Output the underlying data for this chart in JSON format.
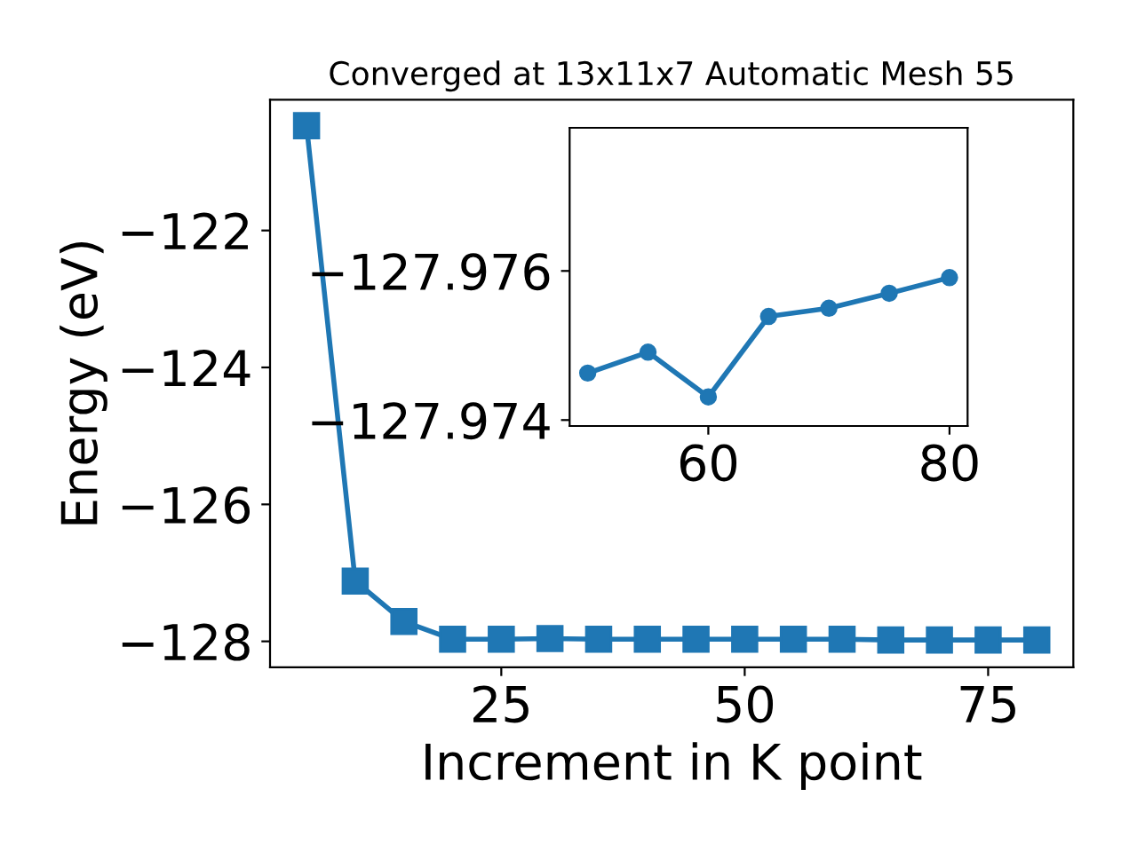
{
  "chart_data": [
    {
      "type": "line",
      "title": "Converged at 13x11x7 Automatic Mesh 55",
      "xlabel": "Increment in K point",
      "ylabel": "Energy (eV)",
      "x": [
        5,
        10,
        15,
        20,
        25,
        30,
        35,
        40,
        45,
        50,
        55,
        60,
        65,
        70,
        75,
        80
      ],
      "series": [
        {
          "color": "#1f77b4",
          "values": [
            -120.47,
            -127.12,
            -127.71,
            -127.97,
            -127.97,
            -127.96,
            -127.97,
            -127.97,
            -127.97,
            -127.97,
            -127.97,
            -127.97,
            -127.98,
            -127.98,
            -127.98,
            -127.98
          ]
        }
      ],
      "xlim": [
        1.25,
        83.75
      ],
      "xticks": [
        25,
        50,
        75
      ],
      "ylim": [
        -128.38,
        -120.09
      ],
      "yticks": [
        {
          "value": -128,
          "label": "−128"
        },
        {
          "value": -126,
          "label": "−126"
        },
        {
          "value": -124,
          "label": "−124"
        },
        {
          "value": -122,
          "label": "−122"
        }
      ],
      "marker": "square",
      "line_style": "solid",
      "grid": false,
      "legend": false
    },
    {
      "type": "line",
      "x": [
        50,
        55,
        60,
        65,
        70,
        75,
        80
      ],
      "series": [
        {
          "color": "#1f77b4",
          "values": [
            -127.97463,
            -127.97491,
            -127.97431,
            -127.97539,
            -127.9755,
            -127.9757,
            -127.97591
          ]
        }
      ],
      "xlim": [
        48.5,
        81.5
      ],
      "xticks": [
        60,
        80
      ],
      "ylim": [
        -127.97392,
        -127.97792
      ],
      "yticks": [
        {
          "value": -127.976,
          "label": "−127.976"
        },
        {
          "value": -127.974,
          "label": "−127.974"
        }
      ],
      "marker": "circle",
      "line_style": "solid",
      "grid": false,
      "legend": false
    }
  ]
}
